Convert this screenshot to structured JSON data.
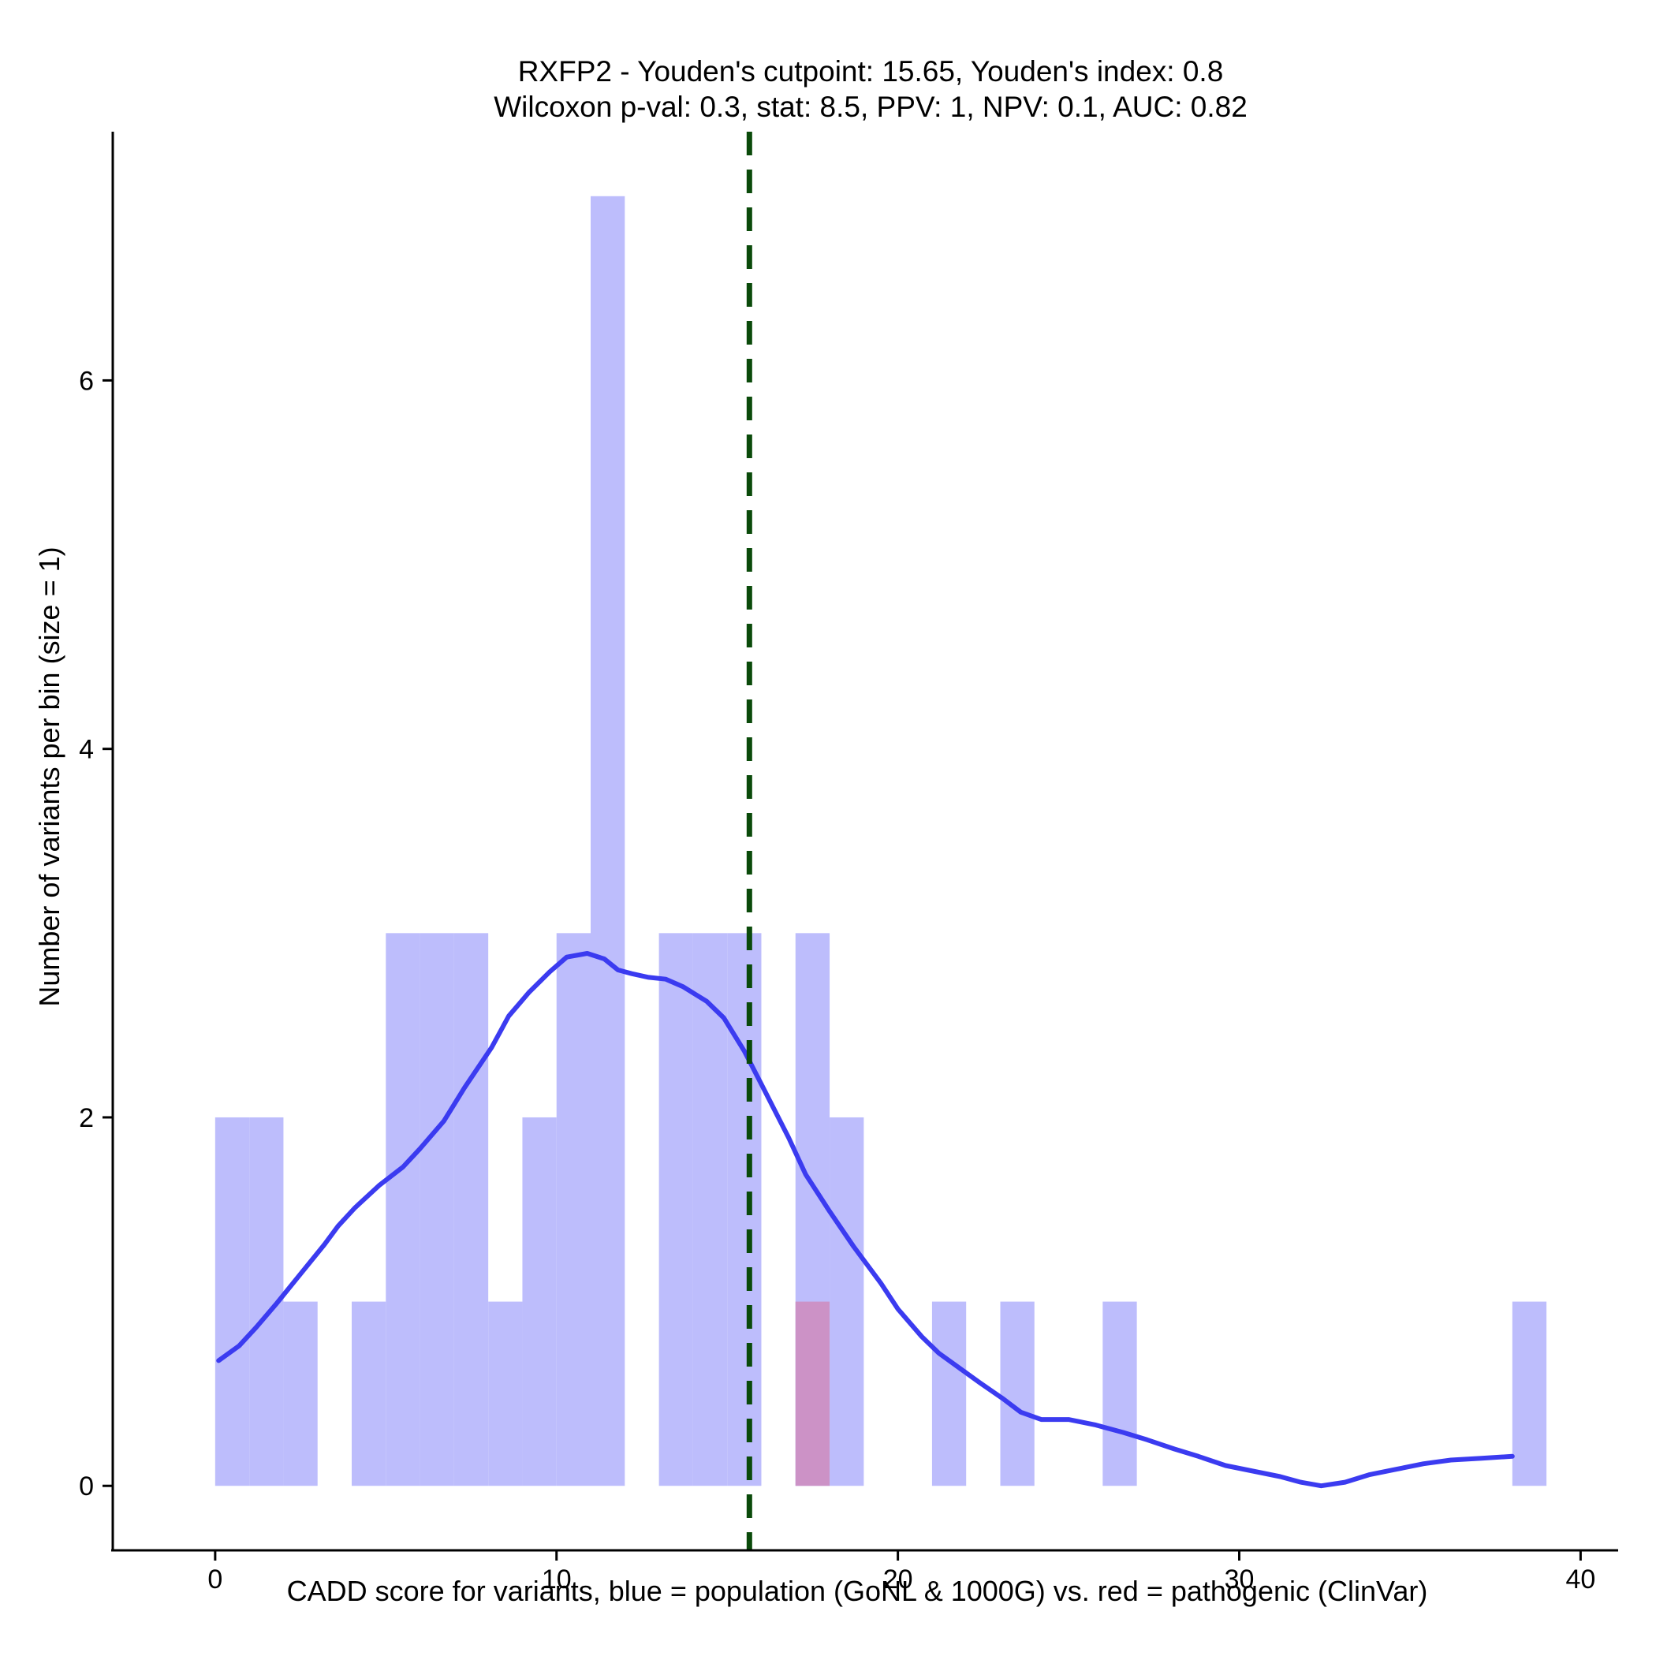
{
  "chart_data": {
    "type": "histogram",
    "title_line1": "RXFP2 - Youden's cutpoint: 15.65, Youden's index: 0.8",
    "title_line2": "Wilcoxon p-val: 0.3, stat: 8.5, PPV: 1, NPV: 0.1, AUC: 0.82",
    "xlabel": "CADD score for variants, blue = population (GoNL & 1000G) vs. red = pathogenic (ClinVar)",
    "ylabel": "Number of variants per bin (size = 1)",
    "xlim": [
      -3,
      41.1
    ],
    "ylim": [
      -0.35,
      7.35
    ],
    "x_ticks": [
      0,
      10,
      20,
      30,
      40
    ],
    "y_ticks": [
      0,
      2,
      4,
      6
    ],
    "x_tick_labels": [
      "0",
      "10",
      "20",
      "30",
      "40"
    ],
    "y_tick_labels": [
      "0",
      "2",
      "4",
      "6"
    ],
    "cutpoint": 15.65,
    "colors": {
      "population_bar": "#bdbdfc",
      "pathogenic_bar": "#cc92c6",
      "density_line": "#3b3bf0",
      "cutpoint_line": "#0a4a0a"
    },
    "series": [
      {
        "name": "population",
        "bins": [
          [
            0,
            1,
            2
          ],
          [
            1,
            2,
            2
          ],
          [
            2,
            3,
            1
          ],
          [
            3,
            4,
            0
          ],
          [
            4,
            5,
            1
          ],
          [
            5,
            6,
            3
          ],
          [
            6,
            7,
            3
          ],
          [
            7,
            8,
            3
          ],
          [
            8,
            9,
            1
          ],
          [
            9,
            10,
            2
          ],
          [
            10,
            11,
            3
          ],
          [
            11,
            12,
            7
          ],
          [
            12,
            13,
            0
          ],
          [
            13,
            14,
            3
          ],
          [
            14,
            15,
            3
          ],
          [
            15,
            16,
            3
          ],
          [
            16,
            17,
            0
          ],
          [
            17,
            18,
            3
          ],
          [
            18,
            19,
            2
          ],
          [
            19,
            20,
            0
          ],
          [
            20,
            21,
            0
          ],
          [
            21,
            22,
            1
          ],
          [
            22,
            23,
            0
          ],
          [
            23,
            24,
            1
          ],
          [
            24,
            25,
            0
          ],
          [
            25,
            26,
            0
          ],
          [
            26,
            27,
            1
          ],
          [
            27,
            28,
            0
          ],
          [
            28,
            29,
            0
          ],
          [
            29,
            30,
            0
          ],
          [
            30,
            31,
            0
          ],
          [
            31,
            32,
            0
          ],
          [
            32,
            33,
            0
          ],
          [
            33,
            34,
            0
          ],
          [
            34,
            35,
            0
          ],
          [
            35,
            36,
            0
          ],
          [
            36,
            37,
            0
          ],
          [
            37,
            38,
            0
          ],
          [
            38,
            39,
            1
          ]
        ]
      },
      {
        "name": "pathogenic",
        "bins": [
          [
            17,
            18,
            1
          ]
        ]
      }
    ],
    "density": {
      "name": "population density",
      "points": [
        [
          0.1,
          0.68
        ],
        [
          0.7,
          0.76
        ],
        [
          1.2,
          0.86
        ],
        [
          1.8,
          0.99
        ],
        [
          2.5,
          1.15
        ],
        [
          3.2,
          1.31
        ],
        [
          3.6,
          1.41
        ],
        [
          4.1,
          1.51
        ],
        [
          4.8,
          1.63
        ],
        [
          5.5,
          1.73
        ],
        [
          6.0,
          1.83
        ],
        [
          6.7,
          1.98
        ],
        [
          7.3,
          2.16
        ],
        [
          8.1,
          2.38
        ],
        [
          8.6,
          2.55
        ],
        [
          9.2,
          2.68
        ],
        [
          9.8,
          2.79
        ],
        [
          10.3,
          2.87
        ],
        [
          10.9,
          2.89
        ],
        [
          11.4,
          2.86
        ],
        [
          11.8,
          2.8
        ],
        [
          12.2,
          2.78
        ],
        [
          12.7,
          2.76
        ],
        [
          13.2,
          2.75
        ],
        [
          13.7,
          2.71
        ],
        [
          14.4,
          2.63
        ],
        [
          14.9,
          2.54
        ],
        [
          15.5,
          2.36
        ],
        [
          16.0,
          2.18
        ],
        [
          16.8,
          1.89
        ],
        [
          17.3,
          1.69
        ],
        [
          18.0,
          1.49
        ],
        [
          18.7,
          1.3
        ],
        [
          19.5,
          1.1
        ],
        [
          20.0,
          0.96
        ],
        [
          20.7,
          0.81
        ],
        [
          21.2,
          0.72
        ],
        [
          21.8,
          0.64
        ],
        [
          22.4,
          0.56
        ],
        [
          23.1,
          0.47
        ],
        [
          23.6,
          0.4
        ],
        [
          24.2,
          0.36
        ],
        [
          25.0,
          0.36
        ],
        [
          25.8,
          0.33
        ],
        [
          26.6,
          0.29
        ],
        [
          27.3,
          0.25
        ],
        [
          28.1,
          0.2
        ],
        [
          28.8,
          0.16
        ],
        [
          29.6,
          0.11
        ],
        [
          30.4,
          0.08
        ],
        [
          31.2,
          0.05
        ],
        [
          31.8,
          0.02
        ],
        [
          32.4,
          0.0
        ],
        [
          33.1,
          0.02
        ],
        [
          33.8,
          0.06
        ],
        [
          34.6,
          0.09
        ],
        [
          35.4,
          0.12
        ],
        [
          36.2,
          0.14
        ],
        [
          37.1,
          0.15
        ],
        [
          38.0,
          0.16
        ]
      ]
    }
  }
}
